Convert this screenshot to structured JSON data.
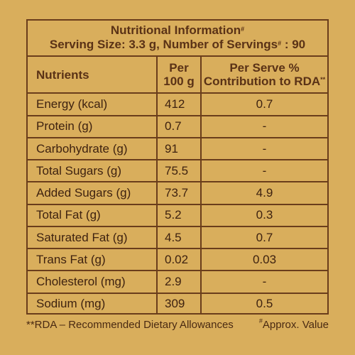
{
  "header": {
    "title": "Nutritional Information",
    "title_mark": "#",
    "serving_text": "Serving Size: 3.3 g, Number of Servings",
    "serving_mark": "#",
    "serving_count": " : 90"
  },
  "table": {
    "headers": {
      "nutrients": "Nutrients",
      "per100_line1": "Per",
      "per100_line2": "100 g",
      "rda_line1": "Per Serve %",
      "rda_line2": "Contribution to RDA",
      "rda_mark": "**"
    },
    "rows": [
      {
        "name": "Energy (kcal)",
        "per100": "412",
        "rda": "0.7"
      },
      {
        "name": "Protein (g)",
        "per100": "0.7",
        "rda": "-"
      },
      {
        "name": "Carbohydrate (g)",
        "per100": "91",
        "rda": "-"
      },
      {
        "name": "Total Sugars (g)",
        "per100": "75.5",
        "rda": "-"
      },
      {
        "name": "Added Sugars (g)",
        "per100": "73.7",
        "rda": "4.9"
      },
      {
        "name": "Total Fat (g)",
        "per100": "5.2",
        "rda": "0.3"
      },
      {
        "name": "Saturated Fat (g)",
        "per100": "4.5",
        "rda": "0.7"
      },
      {
        "name": "Trans Fat (g)",
        "per100": "0.02",
        "rda": "0.03"
      },
      {
        "name": "Cholesterol (mg)",
        "per100": "2.9",
        "rda": "-"
      },
      {
        "name": "Sodium (mg)",
        "per100": "309",
        "rda": "0.5"
      }
    ]
  },
  "footer": {
    "rda_note": "**RDA – Recommended Dietary Allowances",
    "approx_mark": "#",
    "approx_text": "Approx. Value"
  },
  "colors": {
    "background": "#d9ae5c",
    "border": "#6a3d1b",
    "text": "#3e2210"
  }
}
